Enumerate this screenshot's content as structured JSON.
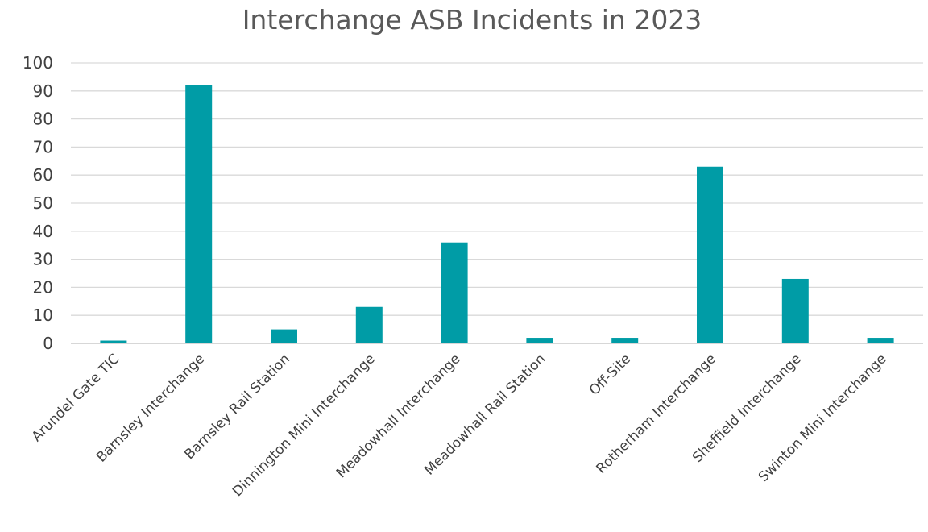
{
  "chart_data": {
    "type": "bar",
    "title": "Interchange ASB Incidents in 2023",
    "xlabel": "",
    "ylabel": "",
    "categories": [
      "Arundel Gate TIC",
      "Barnsley Interchange",
      "Barnsley Rail Station",
      "Dinnington Mini Interchange",
      "Meadowhall Interchange",
      "Meadowhall Rail Station",
      "Off-Site",
      "Rotherham Interchange",
      "Sheffield Interchange",
      "Swinton Mini Interchange"
    ],
    "values": [
      1,
      92,
      5,
      13,
      36,
      2,
      2,
      63,
      23,
      2
    ],
    "ylim": [
      0,
      100
    ],
    "yticks": [
      0,
      10,
      20,
      30,
      40,
      50,
      60,
      70,
      80,
      90,
      100
    ],
    "grid": true,
    "legend": "none",
    "bar_color": "#009ca6"
  }
}
